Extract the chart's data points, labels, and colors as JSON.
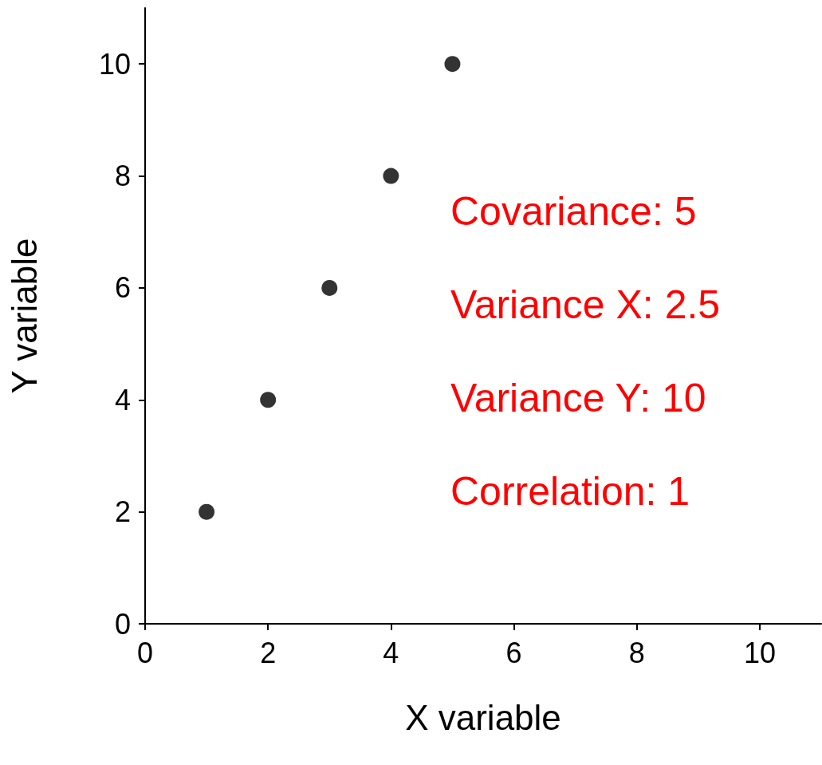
{
  "chart_data": {
    "type": "scatter",
    "xlabel": "X variable",
    "ylabel": "Y variable",
    "x": [
      1,
      2,
      3,
      4,
      5
    ],
    "series": [
      {
        "color": "#000000",
        "values": [
          2,
          4,
          6,
          8,
          10
        ]
      }
    ],
    "xlim": [
      0,
      11
    ],
    "xticks": [
      0,
      2,
      4,
      6,
      8,
      10
    ],
    "ylim": [
      0,
      11
    ],
    "yticks": [
      0,
      2,
      4,
      6,
      8,
      10
    ],
    "grid": false,
    "marker": "circle",
    "annotations": [
      "Covariance: 5",
      "Variance X: 2.5",
      "Variance Y: 10",
      "Correlation: 1"
    ]
  }
}
